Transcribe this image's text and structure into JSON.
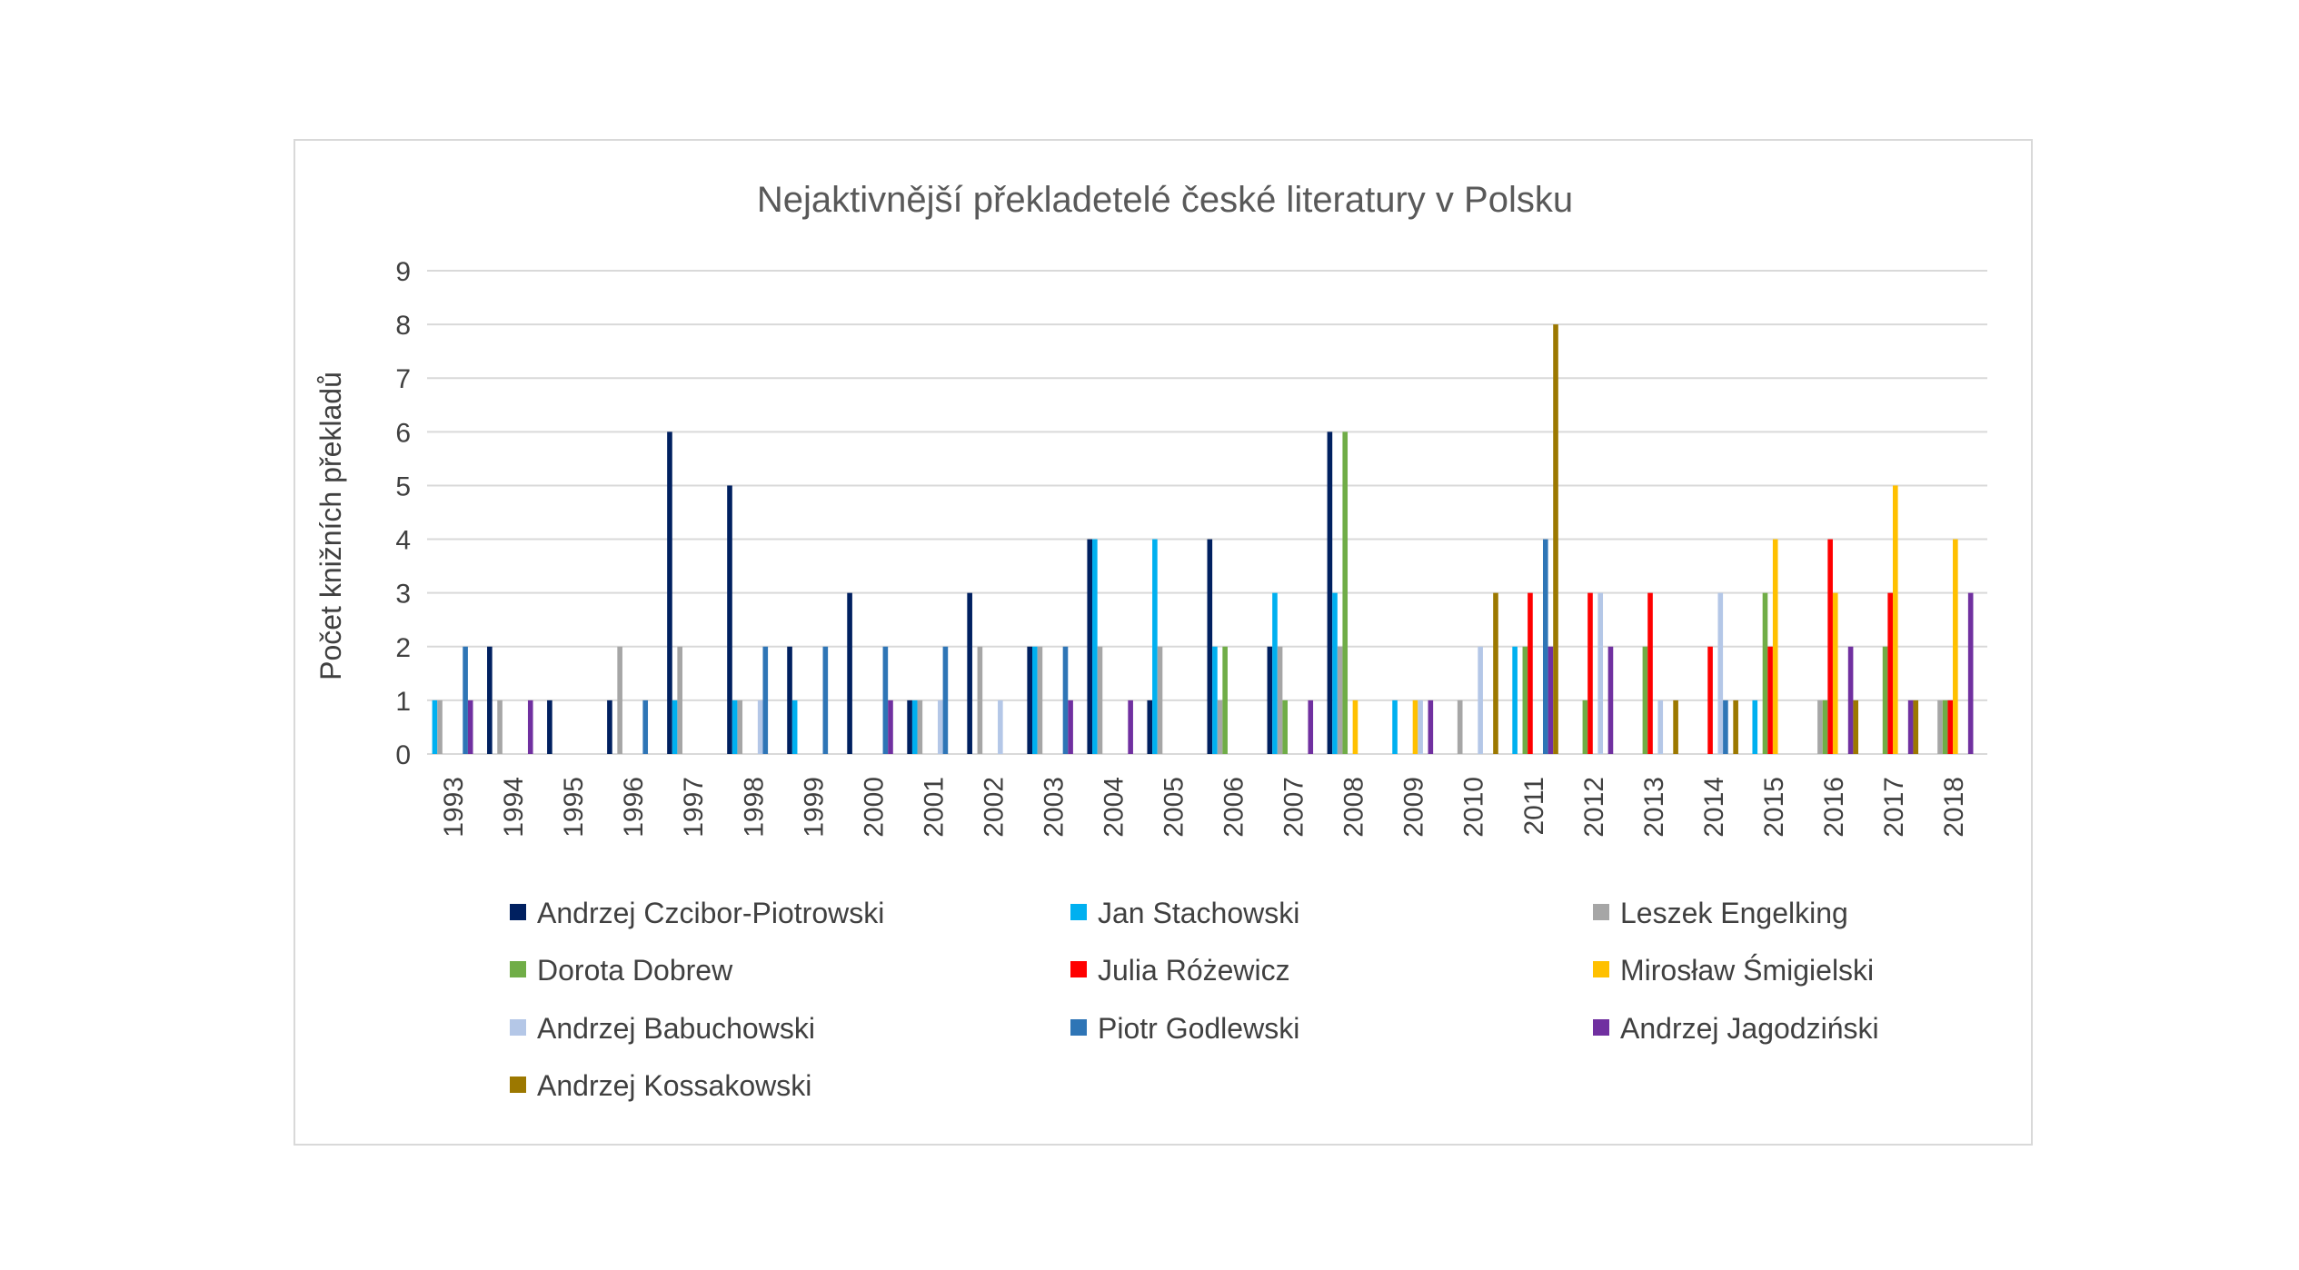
{
  "chart_data": {
    "type": "bar",
    "title": "Nejaktivnější překladetelé české literatury v Polsku",
    "xlabel": "",
    "ylabel": "Počet knižních překladů",
    "ylim": [
      0,
      9
    ],
    "yticks": [
      "0",
      "1",
      "2",
      "3",
      "4",
      "5",
      "6",
      "7",
      "8",
      "9"
    ],
    "grid": true,
    "legend_position": "bottom",
    "categories": [
      "1993",
      "1994",
      "1995",
      "1996",
      "1997",
      "1998",
      "1999",
      "2000",
      "2001",
      "2002",
      "2003",
      "2004",
      "2005",
      "2006",
      "2007",
      "2008",
      "2009",
      "2010",
      "2011",
      "2012",
      "2013",
      "2014",
      "2015",
      "2016",
      "2017",
      "2018"
    ],
    "series": [
      {
        "name": "Andrzej Czcibor-Piotrowski",
        "color": "#002060",
        "values": [
          0,
          2,
          1,
          1,
          6,
          5,
          2,
          3,
          1,
          3,
          2,
          4,
          1,
          4,
          2,
          6,
          0,
          0,
          0,
          0,
          0,
          0,
          0,
          0,
          0,
          0
        ]
      },
      {
        "name": "Jan Stachowski",
        "color": "#00b0f0",
        "values": [
          1,
          0,
          0,
          0,
          1,
          1,
          1,
          0,
          1,
          0,
          2,
          4,
          4,
          2,
          3,
          3,
          1,
          0,
          2,
          0,
          0,
          0,
          1,
          0,
          0,
          0
        ]
      },
      {
        "name": "Leszek Engelking",
        "color": "#a6a6a6",
        "values": [
          1,
          1,
          0,
          2,
          2,
          1,
          0,
          0,
          1,
          2,
          2,
          2,
          2,
          1,
          2,
          2,
          0,
          1,
          0,
          0,
          0,
          0,
          0,
          1,
          0,
          1
        ]
      },
      {
        "name": "Dorota Dobrew",
        "color": "#70ad47",
        "values": [
          0,
          0,
          0,
          0,
          0,
          0,
          0,
          0,
          0,
          0,
          0,
          0,
          0,
          2,
          1,
          6,
          0,
          0,
          2,
          1,
          2,
          0,
          3,
          1,
          2,
          1
        ]
      },
      {
        "name": "Julia Różewicz",
        "color": "#ff0000",
        "values": [
          0,
          0,
          0,
          0,
          0,
          0,
          0,
          0,
          0,
          0,
          0,
          0,
          0,
          0,
          0,
          0,
          0,
          0,
          3,
          3,
          3,
          2,
          2,
          4,
          3,
          1
        ]
      },
      {
        "name": "Mirosław Śmigielski",
        "color": "#ffc000",
        "values": [
          0,
          0,
          0,
          0,
          0,
          0,
          0,
          0,
          0,
          0,
          0,
          0,
          0,
          0,
          0,
          1,
          1,
          0,
          0,
          0,
          0,
          0,
          4,
          3,
          5,
          4
        ]
      },
      {
        "name": "Andrzej Babuchowski",
        "color": "#b4c7e7",
        "values": [
          0,
          0,
          0,
          0,
          0,
          1,
          0,
          0,
          1,
          1,
          0,
          0,
          0,
          0,
          0,
          0,
          1,
          2,
          0,
          3,
          1,
          3,
          0,
          0,
          0,
          0
        ]
      },
      {
        "name": "Piotr Godlewski",
        "color": "#2e75b6",
        "values": [
          2,
          0,
          0,
          1,
          0,
          2,
          2,
          2,
          2,
          0,
          2,
          0,
          0,
          0,
          0,
          0,
          0,
          0,
          4,
          0,
          0,
          1,
          0,
          0,
          0,
          0
        ]
      },
      {
        "name": "Andrzej Jagodziński",
        "color": "#7030a0",
        "values": [
          1,
          1,
          0,
          0,
          0,
          0,
          0,
          1,
          0,
          0,
          1,
          1,
          0,
          0,
          1,
          0,
          1,
          0,
          2,
          2,
          0,
          0,
          0,
          2,
          1,
          3
        ]
      },
      {
        "name": "Andrzej Kossakowski",
        "color": "#9c7800",
        "values": [
          0,
          0,
          0,
          0,
          0,
          0,
          0,
          0,
          0,
          0,
          0,
          0,
          0,
          0,
          0,
          0,
          0,
          3,
          8,
          0,
          1,
          1,
          0,
          1,
          1,
          0
        ]
      }
    ]
  }
}
